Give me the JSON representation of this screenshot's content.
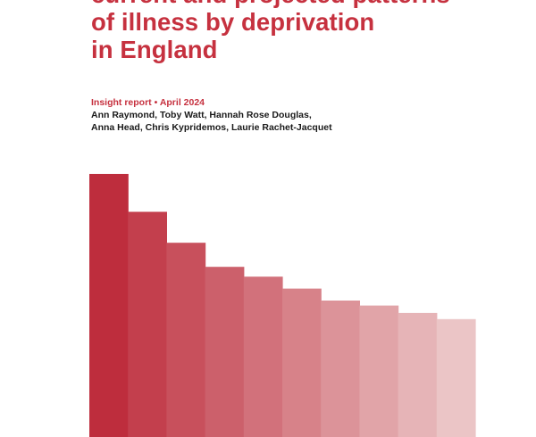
{
  "cover": {
    "title_lines": [
      "current and projected patterns",
      "of illness by deprivation",
      "in England"
    ],
    "report_label": "Insight report",
    "report_separator": "•",
    "report_date": "April 2024",
    "author_lines": [
      "Ann Raymond, Toby Watt, Hannah Rose Douglas,",
      "Anna Head, Chris Kypridemos, Laurie Rachet-Jacquet"
    ]
  },
  "colors": {
    "brand_red": "#c6313f",
    "text_dark": "#1a1a1a",
    "bar_colors": [
      "#be2d3d",
      "#c33f4d",
      "#c8505c",
      "#cc606b",
      "#d2717b",
      "#d78289",
      "#dc9399",
      "#e1a4a8",
      "#e6b4b7",
      "#ebc5c6"
    ]
  },
  "decorative_bars": {
    "levels": [
      1.0,
      0.857,
      0.74,
      0.649,
      0.612,
      0.567,
      0.522,
      0.503,
      0.475,
      0.452
    ]
  }
}
